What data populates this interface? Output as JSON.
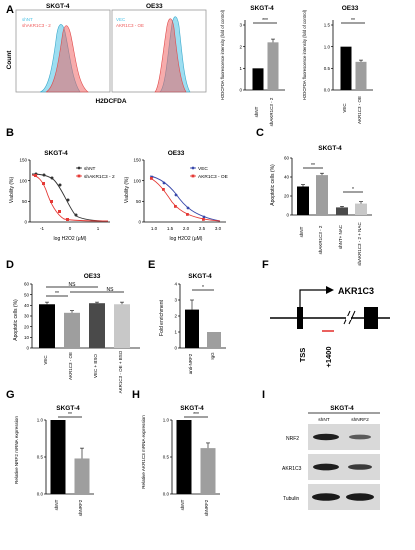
{
  "panels": {
    "A": {
      "letter": "A",
      "flow": {
        "ylabel": "Count",
        "xlabel": "H2DCFDA",
        "left": {
          "title": "SKGT-4",
          "legend": [
            "shNT",
            "shAKR1C3 - 2"
          ],
          "colors": [
            "#4dc3e6",
            "#ef5a5a"
          ]
        },
        "right": {
          "title": "OE33",
          "legend": [
            "VEC",
            "AKR1C3 - OE"
          ],
          "colors": [
            "#4dc3e6",
            "#ef5a5a"
          ]
        }
      },
      "bars_left": {
        "title": "SKGT-4",
        "ylabel": "H2DCFDA fluorescence intensity (fold of control)",
        "categories": [
          "shNT",
          "shAKR1C3 - 2"
        ],
        "values": [
          1.0,
          2.2
        ],
        "ylim": [
          0,
          3
        ],
        "ticks": [
          "0",
          "1",
          "2",
          "3"
        ],
        "sig": "***"
      },
      "bars_right": {
        "title": "OE33",
        "ylabel": "H2DCFDA fluorescence intensity (fold of control)",
        "categories": [
          "VEC",
          "AKR1C3 - OE"
        ],
        "values": [
          1.0,
          0.65
        ],
        "ylim": [
          0,
          1.5
        ],
        "ticks": [
          "0.0",
          "0.5",
          "1.0",
          "1.5"
        ],
        "sig": "**"
      }
    },
    "B": {
      "letter": "B",
      "left": {
        "title": "SKGT-4",
        "ylabel": "Viability (%)",
        "xlabel": "log H2O2 (μM)",
        "ylim": [
          0,
          150
        ],
        "yticks": [
          "0",
          "50",
          "100",
          "150"
        ],
        "xticks": [
          "-1",
          "0",
          "1"
        ],
        "legend": [
          "shNT",
          "shAKR1C3 - 2"
        ]
      },
      "right": {
        "title": "OE33",
        "ylabel": "Viability (%)",
        "xlabel": "log H2O2 (μM)",
        "ylim": [
          0,
          150
        ],
        "yticks": [
          "0",
          "50",
          "100",
          "150"
        ],
        "xticks": [
          "1.0",
          "1.5",
          "2.0",
          "2.5",
          "3.0"
        ],
        "legend": [
          "VEC",
          "AKR1C3 - OE"
        ]
      }
    },
    "C": {
      "letter": "C",
      "title": "SKGT-4",
      "ylabel": "Apoptotic cells (%)",
      "categories": [
        "shNT",
        "shAKR1C3 - 2",
        "shNT+ NAC",
        "shAKR1C3 - 2 + NAC"
      ],
      "values": [
        30,
        42,
        8,
        12
      ],
      "ylim": [
        0,
        60
      ],
      "ticks": [
        "0",
        "20",
        "40",
        "60"
      ],
      "sig": [
        "**",
        "*"
      ]
    },
    "D": {
      "letter": "D",
      "title": "OE33",
      "ylabel": "Apoptotic cells (%)",
      "categories": [
        "VEC",
        "AKR1C3 - OE",
        "VEC + BSO",
        "AKR1C3 - OE + BSO"
      ],
      "values": [
        41,
        33,
        42,
        41
      ],
      "ylim": [
        0,
        60
      ],
      "ticks": [
        "0",
        "10",
        "20",
        "30",
        "40",
        "50",
        "60"
      ],
      "sig": [
        "**",
        "NS",
        "NS"
      ]
    },
    "E": {
      "letter": "E",
      "title": "SKGT-4",
      "ylabel": "Fold enrichment",
      "categories": [
        "anti-NRF2",
        "IgG"
      ],
      "values": [
        2.4,
        1.0
      ],
      "ylim": [
        0,
        4
      ],
      "ticks": [
        "0",
        "1",
        "2",
        "3",
        "4"
      ],
      "sig": "*"
    },
    "F": {
      "letter": "F",
      "gene": "AKR1C3",
      "tss": "TSS",
      "site": "+1400"
    },
    "G": {
      "letter": "G",
      "title": "SKGT-4",
      "ylabel": "Relative NRF2 mRNA expression",
      "categories": [
        "shNT",
        "shNRF2"
      ],
      "values": [
        1.0,
        0.48
      ],
      "ylim": [
        0,
        1.0
      ],
      "ticks": [
        "0.0",
        "0.5",
        "1.0"
      ],
      "sig": "**"
    },
    "H": {
      "letter": "H",
      "title": "SKGT-4",
      "ylabel": "Relative AKR1C3 mRNA expression",
      "categories": [
        "shNT",
        "shNRF2"
      ],
      "values": [
        1.0,
        0.62
      ],
      "ylim": [
        0,
        1.0
      ],
      "ticks": [
        "0.0",
        "0.5",
        "1.0"
      ],
      "sig": "***"
    },
    "I": {
      "letter": "I",
      "title": "SKGT-4",
      "lanes": [
        "shNT",
        "shNRF2"
      ],
      "rows": [
        "NRF2",
        "AKR1C3",
        "Tubulin"
      ]
    }
  }
}
